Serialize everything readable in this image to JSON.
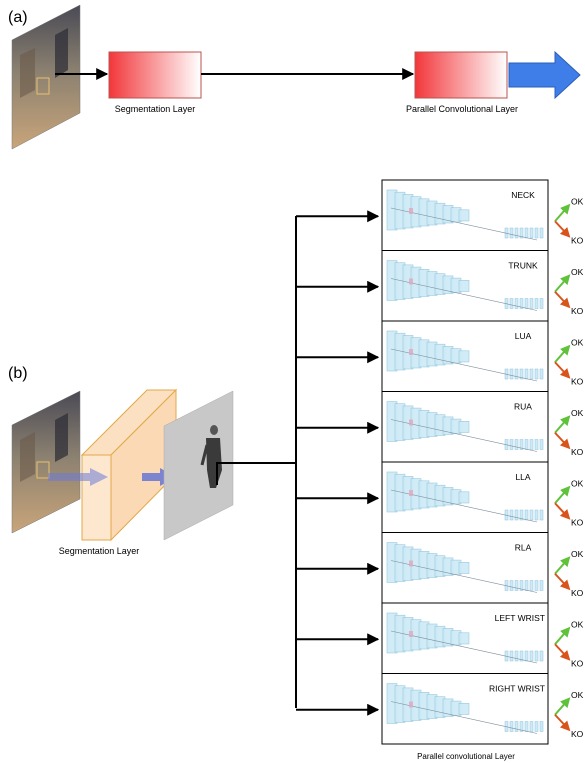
{
  "panel_a": {
    "label": "(a)",
    "segmentation_label": "Segmentation Layer",
    "parallel_label": "Parallel Convolutional Layer"
  },
  "panel_b": {
    "label": "(b)",
    "segmentation_label": "Segmentation Layer",
    "parallel_label": "Parallel convolutional Layer",
    "branches": [
      {
        "name": "NECK",
        "ok": "OK",
        "ko": "KO"
      },
      {
        "name": "TRUNK",
        "ok": "OK",
        "ko": "KO"
      },
      {
        "name": "LUA",
        "ok": "OK",
        "ko": "KO"
      },
      {
        "name": "RUA",
        "ok": "OK",
        "ko": "KO"
      },
      {
        "name": "LLA",
        "ok": "OK",
        "ko": "KO"
      },
      {
        "name": "RLA",
        "ok": "OK",
        "ko": "KO"
      },
      {
        "name": "LEFT WRIST",
        "ok": "OK",
        "ko": "KO"
      },
      {
        "name": "RIGHT WRIST",
        "ok": "OK",
        "ko": "KO"
      }
    ]
  },
  "colors": {
    "layer_red": "#f24b4b",
    "output_arrow": "#3f7ee8",
    "seg_box_fill": "#fde3c8",
    "seg_box_stroke": "#e3a84a",
    "ok_green": "#5fc23a",
    "ko_orange": "#d9541c",
    "cnn_blue": "#bfe3f2"
  }
}
